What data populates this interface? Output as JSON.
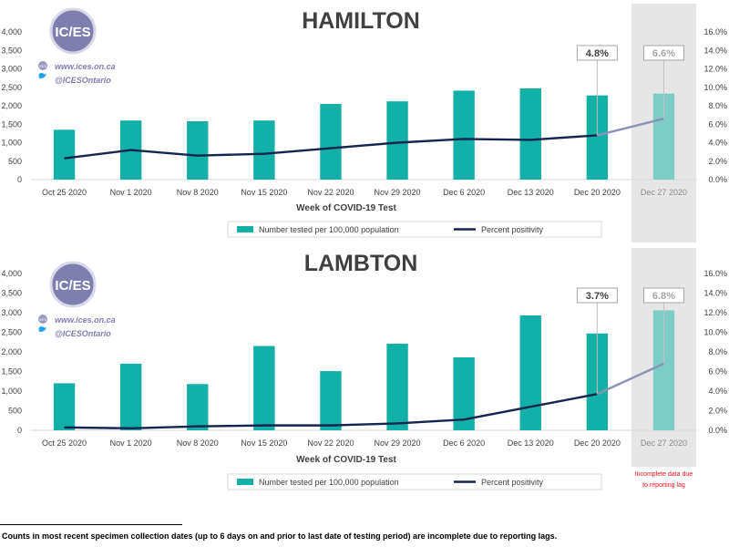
{
  "colors": {
    "bar": "#12b0a6",
    "bar_incomplete": "#7dccc6",
    "line": "#16244f",
    "line_incomplete": "#8a93b3",
    "shade": "#e6e6e6",
    "incomplete_note": "#e8141c",
    "logo": "#7f7eb0"
  },
  "logo": {
    "text": "IC/ES",
    "website": "www.ices.on.ca",
    "twitter": "@ICESOntario",
    "badge": "ICES"
  },
  "footnote": "Counts in most recent specimen collection dates (up to 6 days on and prior to last date of testing period) are incomplete due to reporting lags.",
  "incomplete_note": "Incomplete data due to reporting lag",
  "chart_data": [
    {
      "type": "bar+line",
      "title": "HAMILTON",
      "xlabel": "Week of COVID-19 Test",
      "categories": [
        "Oct 25 2020",
        "Nov 1 2020",
        "Nov 8 2020",
        "Nov 15 2020",
        "Nov 22 2020",
        "Nov 29 2020",
        "Dec 6 2020",
        "Dec 13 2020",
        "Dec 20 2020",
        "Dec 27 2020"
      ],
      "y_left_ticks": [
        "0",
        "500",
        "1,000",
        "1,500",
        "2,000",
        "2,500",
        "3,000",
        "3,500",
        "4,000"
      ],
      "y_right_ticks": [
        "0.0%",
        "2.0%",
        "4.0%",
        "6.0%",
        "8.0%",
        "10.0%",
        "12.0%",
        "14.0%",
        "16.0%"
      ],
      "ylim_left": [
        0,
        4000
      ],
      "ylim_right": [
        0,
        16
      ],
      "series": [
        {
          "name": "Number tested per 100,000 population",
          "kind": "bar",
          "values": [
            1350,
            1600,
            1580,
            1600,
            2050,
            2120,
            2410,
            2470,
            2280,
            2330
          ]
        },
        {
          "name": "Percent positivity",
          "kind": "line",
          "values": [
            2.3,
            3.2,
            2.6,
            2.8,
            3.4,
            4.0,
            4.4,
            4.3,
            4.8,
            6.6
          ]
        }
      ],
      "callouts": [
        {
          "index": 8,
          "label": "4.8%"
        },
        {
          "index": 9,
          "label": "6.6%"
        }
      ],
      "incomplete_index": 9
    },
    {
      "type": "bar+line",
      "title": "LAMBTON",
      "xlabel": "Week of COVID-19 Test",
      "categories": [
        "Oct 25 2020",
        "Nov 1 2020",
        "Nov 8 2020",
        "Nov 15 2020",
        "Nov 22 2020",
        "Nov 29 2020",
        "Dec 6 2020",
        "Dec 13 2020",
        "Dec 20 2020",
        "Dec 27 2020"
      ],
      "y_left_ticks": [
        "0",
        "500",
        "1,000",
        "1,500",
        "2,000",
        "2,500",
        "3,000",
        "3,500",
        "4,000"
      ],
      "y_right_ticks": [
        "0.0%",
        "2.0%",
        "4.0%",
        "6.0%",
        "8.0%",
        "10.0%",
        "12.0%",
        "14.0%",
        "16.0%"
      ],
      "ylim_left": [
        0,
        4000
      ],
      "ylim_right": [
        0,
        16
      ],
      "series": [
        {
          "name": "Number tested per 100,000 population",
          "kind": "bar",
          "values": [
            1200,
            1700,
            1180,
            2150,
            1510,
            2210,
            1860,
            2930,
            2470,
            3060
          ]
        },
        {
          "name": "Percent positivity",
          "kind": "line",
          "values": [
            0.3,
            0.2,
            0.4,
            0.5,
            0.5,
            0.7,
            1.1,
            2.4,
            3.7,
            6.8
          ]
        }
      ],
      "callouts": [
        {
          "index": 8,
          "label": "3.7%"
        },
        {
          "index": 9,
          "label": "6.8%"
        }
      ],
      "incomplete_index": 9
    }
  ]
}
